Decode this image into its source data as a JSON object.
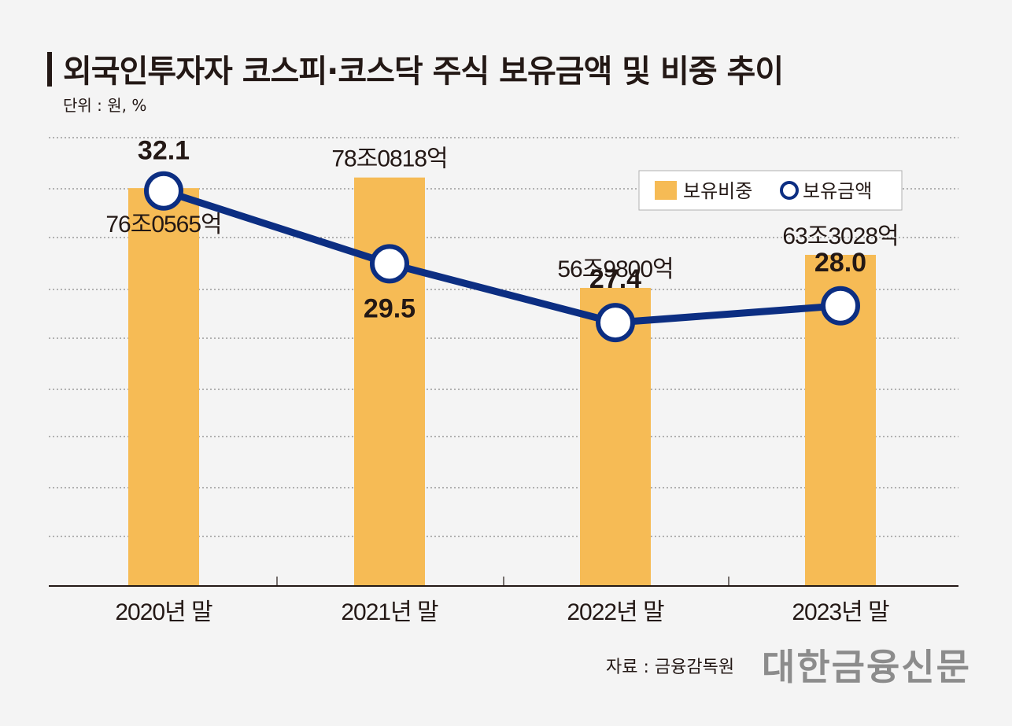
{
  "header": {
    "title": "외국인투자자 코스피·코스닥 주식 보유금액 및 비중 추이",
    "unit": "단위 : 원, %"
  },
  "footer": {
    "source": "자료 : 금융감독원",
    "brand": "대한금융신문"
  },
  "colors": {
    "bar": "#f6bb55",
    "line": "#0c2e82",
    "text": "#231815"
  },
  "chart_data": {
    "type": "bar",
    "title": "외국인투자자 코스피·코스닥 주식 보유금액 및 비중 추이",
    "categories": [
      "2020년 말",
      "2021년 말",
      "2022년 말",
      "2023년 말"
    ],
    "legend": [
      "보유비중",
      "보유금액"
    ],
    "legend_position": "top-right",
    "series": [
      {
        "name": "보유비중",
        "type": "bar",
        "amount_labels": [
          "76조0565억",
          "78조0818억",
          "56조9800억",
          "63조3028억"
        ],
        "values": [
          76.06,
          78.08,
          56.98,
          63.3
        ]
      },
      {
        "name": "보유금액",
        "type": "line",
        "values": [
          32.1,
          29.5,
          27.4,
          28.0
        ],
        "labels": [
          "32.1",
          "29.5",
          "27.4",
          "28.0"
        ]
      }
    ],
    "ylim_bar": [
      0,
      85.7
    ],
    "ylim_line": [
      18,
      34
    ],
    "grid": true
  }
}
